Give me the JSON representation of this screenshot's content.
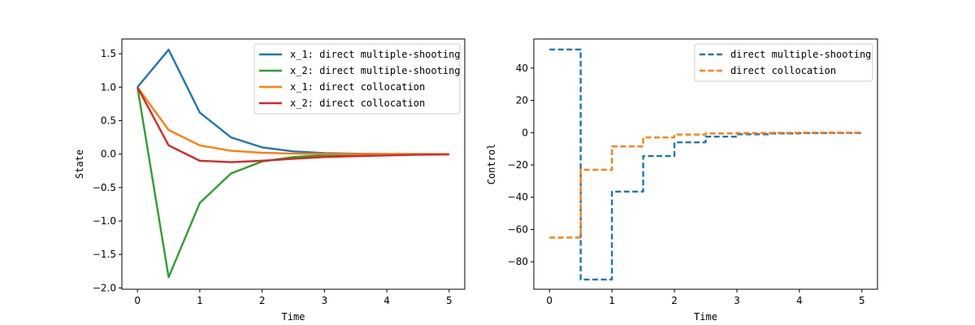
{
  "chart_data": [
    {
      "type": "line",
      "xlabel": "Time",
      "ylabel": "State",
      "xlim": [
        -0.25,
        5.25
      ],
      "ylim": [
        -2.02,
        1.72
      ],
      "xticks": [
        0,
        1,
        2,
        3,
        4,
        5
      ],
      "xtick_labels": [
        "0",
        "1",
        "2",
        "3",
        "4",
        "5"
      ],
      "yticks": [
        -2.0,
        -1.5,
        -1.0,
        -0.5,
        0.0,
        0.5,
        1.0,
        1.5
      ],
      "ytick_labels": [
        "−2.0",
        "−1.5",
        "−1.0",
        "−0.5",
        "0.0",
        "0.5",
        "1.0",
        "1.5"
      ],
      "legend_position": "top-right",
      "grid": false,
      "series": [
        {
          "name": "x_1: direct multiple-shooting",
          "color": "#1f77b4",
          "style": "solid",
          "x": [
            0,
            0.5,
            1,
            1.5,
            2,
            2.5,
            3,
            3.5,
            4,
            4.5,
            5
          ],
          "y": [
            1.0,
            1.56,
            0.62,
            0.25,
            0.1,
            0.04,
            0.015,
            0.006,
            0.002,
            0.001,
            0.0
          ]
        },
        {
          "name": "x_2: direct multiple-shooting",
          "color": "#2ca02c",
          "style": "solid",
          "x": [
            0,
            0.5,
            1,
            1.5,
            2,
            2.5,
            3,
            3.5,
            4,
            4.5,
            5
          ],
          "y": [
            1.0,
            -1.84,
            -0.73,
            -0.29,
            -0.11,
            -0.045,
            -0.018,
            -0.007,
            -0.003,
            -0.001,
            0.0
          ]
        },
        {
          "name": "x_1: direct collocation",
          "color": "#ff7f0e",
          "style": "solid",
          "x": [
            0,
            0.5,
            1,
            1.5,
            2,
            2.5,
            3,
            3.5,
            4,
            4.5,
            5
          ],
          "y": [
            1.0,
            0.36,
            0.13,
            0.05,
            0.02,
            0.007,
            0.003,
            0.001,
            0.0,
            0.0,
            0.0
          ]
        },
        {
          "name": "x_2: direct collocation",
          "color": "#d62728",
          "style": "solid",
          "x": [
            0,
            0.5,
            1,
            1.5,
            2,
            2.5,
            3,
            3.5,
            4,
            4.5,
            5
          ],
          "y": [
            1.0,
            0.13,
            -0.1,
            -0.12,
            -0.1,
            -0.07,
            -0.045,
            -0.03,
            -0.02,
            -0.01,
            -0.005
          ]
        }
      ]
    },
    {
      "type": "line",
      "xlabel": "Time",
      "ylabel": "Control",
      "xlim": [
        -0.25,
        5.25
      ],
      "ylim": [
        -97,
        58
      ],
      "xticks": [
        0,
        1,
        2,
        3,
        4,
        5
      ],
      "xtick_labels": [
        "0",
        "1",
        "2",
        "3",
        "4",
        "5"
      ],
      "yticks": [
        -80,
        -60,
        -40,
        -20,
        0,
        20,
        40
      ],
      "ytick_labels": [
        "−80",
        "−60",
        "−40",
        "−20",
        "0",
        "20",
        "40"
      ],
      "legend_position": "top-right",
      "grid": false,
      "series": [
        {
          "name": "direct multiple-shooting",
          "color": "#1f77b4",
          "style": "dashed-step",
          "x": [
            0,
            0.5,
            1,
            1.5,
            2,
            2.5,
            3,
            3.5,
            4,
            4.5,
            5
          ],
          "y": [
            51.5,
            -91,
            -36.5,
            -14.5,
            -6,
            -2.5,
            -1,
            -0.5,
            -0.3,
            -0.2,
            -0.2
          ]
        },
        {
          "name": "direct collocation",
          "color": "#ff7f0e",
          "style": "dashed-step",
          "x": [
            0,
            0.5,
            1,
            1.5,
            2,
            2.5,
            3,
            3.5,
            4,
            4.5,
            5
          ],
          "y": [
            -65,
            -23,
            -8.5,
            -3,
            -1.2,
            -0.5,
            -0.2,
            -0.1,
            0,
            0,
            0
          ]
        }
      ]
    }
  ]
}
